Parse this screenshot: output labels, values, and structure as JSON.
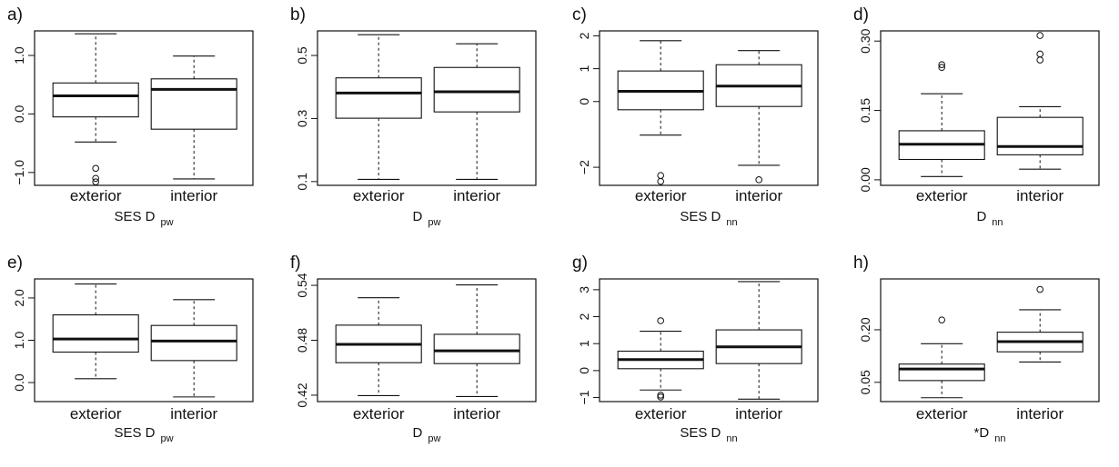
{
  "chart_data": [
    {
      "label": "a)",
      "type": "boxplot",
      "categories": [
        "exterior",
        "interior"
      ],
      "xlabel": {
        "main": "SES D",
        "sub": "pw"
      },
      "yticks": [
        {
          "v": -1.0,
          "t": "−1.0"
        },
        {
          "v": 0.0,
          "t": "0.0"
        },
        {
          "v": 1.0,
          "t": "1.0"
        }
      ],
      "ylim": [
        -1.22,
        1.42
      ],
      "boxes": [
        {
          "whisker_low": -0.48,
          "q1": -0.05,
          "median": 0.31,
          "q3": 0.53,
          "whisker_high": 1.37,
          "outliers": [
            -0.93,
            -1.1,
            -1.16
          ]
        },
        {
          "whisker_low": -1.11,
          "q1": -0.26,
          "median": 0.42,
          "q3": 0.6,
          "whisker_high": 0.99,
          "outliers": []
        }
      ]
    },
    {
      "label": "b)",
      "type": "boxplot",
      "categories": [
        "exterior",
        "interior"
      ],
      "xlabel": {
        "main": "D",
        "sub": "pw"
      },
      "yticks": [
        {
          "v": 0.1,
          "t": "0.1"
        },
        {
          "v": 0.3,
          "t": "0.3"
        },
        {
          "v": 0.5,
          "t": "0.5"
        }
      ],
      "ylim": [
        0.088,
        0.578
      ],
      "boxes": [
        {
          "whisker_low": 0.107,
          "q1": 0.301,
          "median": 0.381,
          "q3": 0.429,
          "whisker_high": 0.566,
          "outliers": []
        },
        {
          "whisker_low": 0.107,
          "q1": 0.321,
          "median": 0.385,
          "q3": 0.462,
          "whisker_high": 0.537,
          "outliers": []
        }
      ]
    },
    {
      "label": "c)",
      "type": "boxplot",
      "categories": [
        "exterior",
        "interior"
      ],
      "xlabel": {
        "main": "SES D",
        "sub": "nn"
      },
      "yticks": [
        {
          "v": -2,
          "t": "−2"
        },
        {
          "v": 0,
          "t": "0"
        },
        {
          "v": 1,
          "t": "1"
        },
        {
          "v": 2,
          "t": "2"
        }
      ],
      "ylim": [
        -2.55,
        2.15
      ],
      "boxes": [
        {
          "whisker_low": -1.02,
          "q1": -0.25,
          "median": 0.31,
          "q3": 0.93,
          "whisker_high": 1.85,
          "outliers": [
            -2.25,
            -2.43
          ]
        },
        {
          "whisker_low": -1.94,
          "q1": -0.15,
          "median": 0.47,
          "q3": 1.12,
          "whisker_high": 1.55,
          "outliers": [
            -2.38
          ]
        }
      ]
    },
    {
      "label": "d)",
      "type": "boxplot",
      "categories": [
        "exterior",
        "interior"
      ],
      "xlabel": {
        "main": "D",
        "sub": "nn"
      },
      "yticks": [
        {
          "v": 0.0,
          "t": "0.00"
        },
        {
          "v": 0.15,
          "t": "0.15"
        },
        {
          "v": 0.3,
          "t": "0.30"
        }
      ],
      "ylim": [
        -0.012,
        0.322
      ],
      "boxes": [
        {
          "whisker_low": 0.007,
          "q1": 0.044,
          "median": 0.077,
          "q3": 0.106,
          "whisker_high": 0.186,
          "outliers": [
            0.243,
            0.249
          ]
        },
        {
          "whisker_low": 0.023,
          "q1": 0.054,
          "median": 0.072,
          "q3": 0.135,
          "whisker_high": 0.158,
          "outliers": [
            0.259,
            0.272,
            0.312
          ]
        }
      ]
    },
    {
      "label": "e)",
      "type": "boxplot",
      "categories": [
        "exterior",
        "interior"
      ],
      "xlabel": {
        "main": "SES D",
        "sub": "pw"
      },
      "yticks": [
        {
          "v": 0.0,
          "t": "0.0"
        },
        {
          "v": 1.0,
          "t": "1.0"
        },
        {
          "v": 2.0,
          "t": "2.0"
        }
      ],
      "ylim": [
        -0.45,
        2.45
      ],
      "boxes": [
        {
          "whisker_low": 0.09,
          "q1": 0.72,
          "median": 1.03,
          "q3": 1.6,
          "whisker_high": 2.33,
          "outliers": []
        },
        {
          "whisker_low": -0.34,
          "q1": 0.52,
          "median": 0.98,
          "q3": 1.35,
          "whisker_high": 1.96,
          "outliers": []
        }
      ]
    },
    {
      "label": "f)",
      "type": "boxplot",
      "categories": [
        "exterior",
        "interior"
      ],
      "xlabel": {
        "main": "D",
        "sub": "pw"
      },
      "yticks": [
        {
          "v": 0.42,
          "t": "0.42"
        },
        {
          "v": 0.48,
          "t": "0.48"
        },
        {
          "v": 0.54,
          "t": "0.54"
        }
      ],
      "ylim": [
        0.413,
        0.547
      ],
      "boxes": [
        {
          "whisker_low": 0.4195,
          "q1": 0.4555,
          "median": 0.4755,
          "q3": 0.4965,
          "whisker_high": 0.5265,
          "outliers": []
        },
        {
          "whisker_low": 0.4185,
          "q1": 0.4545,
          "median": 0.4685,
          "q3": 0.4865,
          "whisker_high": 0.5405,
          "outliers": []
        }
      ]
    },
    {
      "label": "g)",
      "type": "boxplot",
      "categories": [
        "exterior",
        "interior"
      ],
      "xlabel": {
        "main": "SES D",
        "sub": "nn"
      },
      "yticks": [
        {
          "v": -1,
          "t": "−1"
        },
        {
          "v": 0,
          "t": "0"
        },
        {
          "v": 1,
          "t": "1"
        },
        {
          "v": 2,
          "t": "2"
        },
        {
          "v": 3,
          "t": "3"
        }
      ],
      "ylim": [
        -1.15,
        3.4
      ],
      "boxes": [
        {
          "whisker_low": -0.72,
          "q1": 0.07,
          "median": 0.41,
          "q3": 0.72,
          "whisker_high": 1.46,
          "outliers": [
            1.85,
            -0.91,
            -0.98
          ]
        },
        {
          "whisker_low": -1.06,
          "q1": 0.26,
          "median": 0.88,
          "q3": 1.51,
          "whisker_high": 3.3,
          "outliers": []
        }
      ]
    },
    {
      "label": "h)",
      "type": "boxplot",
      "categories": [
        "exterior",
        "interior"
      ],
      "xlabel": {
        "main": "*D",
        "sub": "nn"
      },
      "yticks": [
        {
          "v": 0.05,
          "t": "0.05"
        },
        {
          "v": 0.2,
          "t": "0.20"
        }
      ],
      "ylim": [
        -0.005,
        0.345
      ],
      "boxes": [
        {
          "whisker_low": 0.006,
          "q1": 0.055,
          "median": 0.088,
          "q3": 0.102,
          "whisker_high": 0.16,
          "outliers": [
            0.228
          ]
        },
        {
          "whisker_low": 0.108,
          "q1": 0.137,
          "median": 0.166,
          "q3": 0.193,
          "whisker_high": 0.257,
          "outliers": [
            0.315
          ]
        }
      ]
    }
  ]
}
